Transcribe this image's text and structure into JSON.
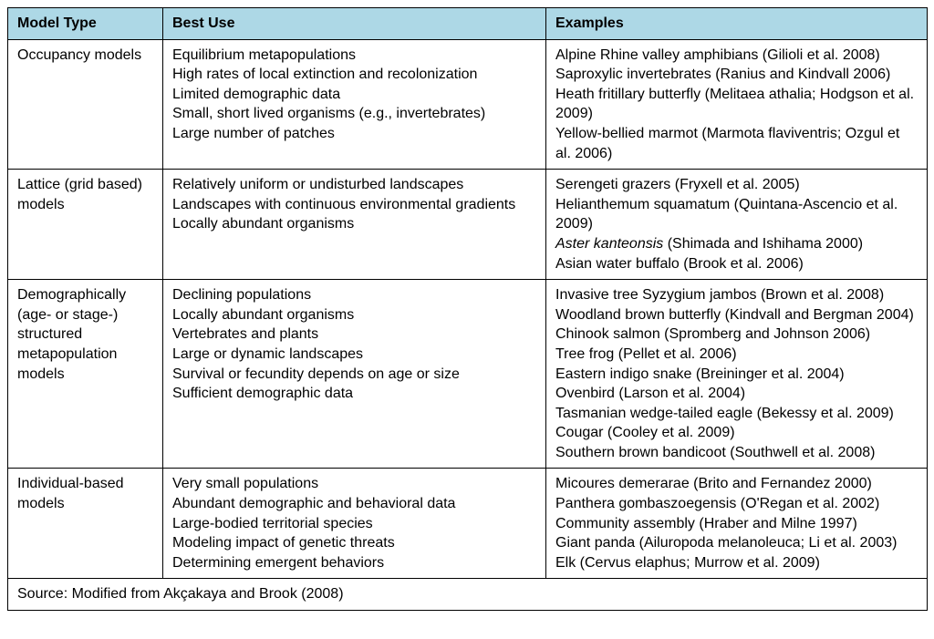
{
  "header_bg": "#add8e6",
  "columns": [
    "Model Type",
    "Best Use",
    "Examples"
  ],
  "rows": [
    {
      "model_type": [
        "Occupancy models"
      ],
      "best_use": [
        "Equilibrium metapopulations",
        "High rates of local extinction and recolonization",
        "Limited demographic data",
        "Small, short lived organisms (e.g., invertebrates)",
        "Large number of patches"
      ],
      "examples": [
        "Alpine Rhine valley amphibians (Gilioli et al. 2008)",
        "Saproxylic invertebrates (Ranius and Kindvall 2006)",
        "Heath fritillary butterfly (Melitaea athalia; Hodgson et al. 2009)",
        "Yellow-bellied marmot (Marmota flaviventris; Ozgul et al. 2006)"
      ]
    },
    {
      "model_type": [
        "Lattice (grid based) models"
      ],
      "best_use": [
        "Relatively uniform or undisturbed landscapes",
        "Landscapes with continuous environmental gradients",
        "Locally abundant organisms"
      ],
      "examples": [
        "Serengeti grazers (Fryxell et al. 2005)",
        "Helianthemum squamatum (Quintana-Ascencio et al. 2009)",
        "<em>Aster kanteonsis</em> (Shimada and Ishihama 2000)",
        "Asian water buffalo (Brook et al. 2006)"
      ]
    },
    {
      "model_type": [
        "Demographically (age- or stage-) structured metapopulation models"
      ],
      "best_use": [
        "Declining populations",
        "Locally abundant organisms",
        "Vertebrates and plants",
        "Large or dynamic landscapes",
        "Survival or fecundity depends on age or size",
        "Sufficient demographic data"
      ],
      "examples": [
        "Invasive tree Syzygium jambos (Brown et al. 2008)",
        "Woodland brown butterfly (Kindvall and Bergman 2004)",
        "Chinook salmon (Spromberg and Johnson 2006)",
        "Tree frog (Pellet et al. 2006)",
        "Eastern indigo snake (Breininger et al. 2004)",
        "Ovenbird (Larson et al. 2004)",
        "Tasmanian wedge-tailed eagle (Bekessy et al. 2009)",
        "Cougar (Cooley et al. 2009)",
        "Southern brown bandicoot (Southwell et al. 2008)"
      ]
    },
    {
      "model_type": [
        "Individual-based models"
      ],
      "best_use": [
        "Very small populations",
        "Abundant demographic and behavioral data",
        "Large-bodied territorial species",
        "Modeling impact of genetic threats",
        "Determining emergent behaviors"
      ],
      "examples": [
        "Micoures demerarae (Brito and Fernandez 2000)",
        "Panthera gombaszoegensis (O'Regan et al. 2002)",
        "Community assembly (Hraber and Milne 1997)",
        "Giant panda (Ailuropoda melanoleuca; Li et al. 2003)",
        "Elk (Cervus elaphus; Murrow et al. 2009)"
      ]
    }
  ],
  "footer": "Source: Modified from Akçakaya and Brook  (2008)"
}
